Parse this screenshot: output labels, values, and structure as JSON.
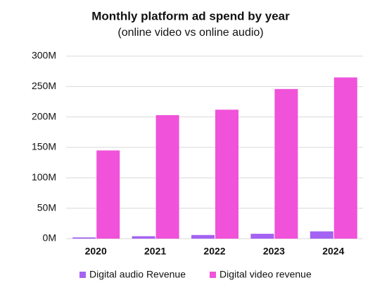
{
  "chart_data": {
    "type": "bar",
    "title": "Monthly platform ad spend by year",
    "subtitle": "(online video vs online audio)",
    "categories": [
      "2020",
      "2021",
      "2022",
      "2023",
      "2024"
    ],
    "series": [
      {
        "name": "Digital audio Revenue",
        "color": "#a463f2",
        "values": [
          2,
          4,
          6,
          8,
          12
        ]
      },
      {
        "name": "Digital video revenue",
        "color": "#f052d9",
        "values": [
          145,
          203,
          212,
          246,
          265
        ]
      }
    ],
    "ylim": [
      0,
      300
    ],
    "yticks": [
      {
        "value": 0,
        "label": "0M"
      },
      {
        "value": 50,
        "label": "50M"
      },
      {
        "value": 100,
        "label": "100M"
      },
      {
        "value": 150,
        "label": "150M"
      },
      {
        "value": 200,
        "label": "200M"
      },
      {
        "value": 250,
        "label": "250M"
      },
      {
        "value": 300,
        "label": "300M"
      }
    ],
    "grid": true,
    "legend": "bottom"
  }
}
